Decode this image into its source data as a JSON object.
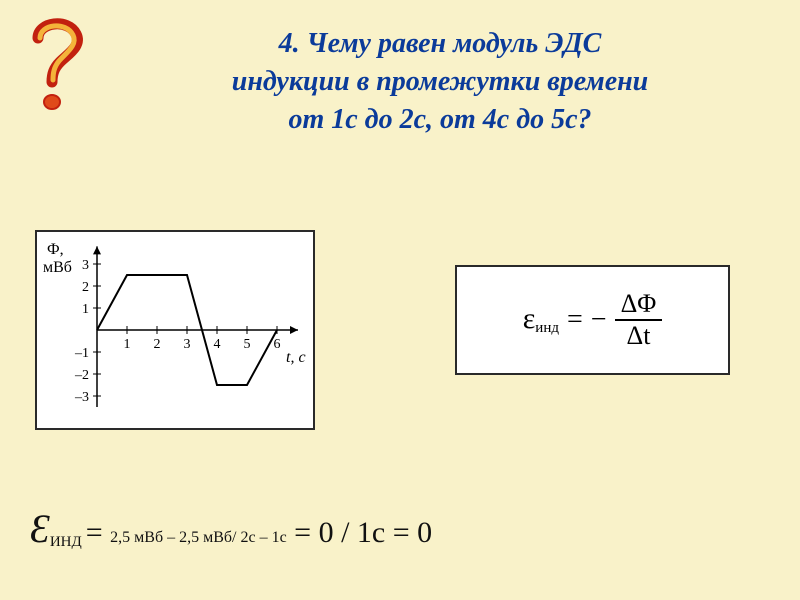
{
  "title": {
    "number": "4.",
    "text_l1": "Чему равен модуль ЭДС",
    "text_l2": "индукции в промежутки времени",
    "text_l3": "от 1с до 2с, от 4с до 5с?",
    "font_size_pt": 28,
    "color": "#0b3b9a"
  },
  "question_icon": {
    "stroke": "#c2210f",
    "fill": "#f4b33a",
    "dot_fill": "#e04a1a"
  },
  "graph": {
    "type": "line",
    "x_label": "t, c",
    "y_label": "Ф,",
    "y_unit": "мВб",
    "xlim": [
      0,
      6.5
    ],
    "ylim": [
      -3.5,
      3.5
    ],
    "x_ticks": [
      1,
      2,
      3,
      4,
      5,
      6
    ],
    "y_ticks": [
      -3,
      -2,
      -1,
      1,
      2,
      3
    ],
    "points": [
      [
        0,
        0
      ],
      [
        1,
        2.5
      ],
      [
        3,
        2.5
      ],
      [
        4,
        -2.5
      ],
      [
        5,
        -2.5
      ],
      [
        6,
        0
      ]
    ],
    "axis_color": "#000000",
    "line_color": "#000000",
    "line_width": 2,
    "background_color": "#ffffff",
    "border_color": "#2a2a2a",
    "label_fontsize": 14
  },
  "formula": {
    "lhs_symbol": "ε",
    "lhs_sub": "инд",
    "rhs_sign": "−",
    "numerator": "ΔΦ",
    "denominator": "Δt",
    "font_size_main": 28,
    "font_size_sub": 15,
    "color": "#000000",
    "background_color": "#ffffff"
  },
  "solution": {
    "eps_symbol": "Ɛ",
    "eps_sub": "ИНД",
    "eq1": " = ",
    "part_mid": "2,5 мВб – 2,5 мВб/ 2с – 1с",
    "eq2": " = 0 / 1c = 0",
    "eps_font_size": 40,
    "mid_font_size": 16,
    "big_font_size": 30
  },
  "colors": {
    "page_bg": "#f9f2c9",
    "panel_bg": "#ffffff",
    "panel_border": "#2a2a2a"
  }
}
